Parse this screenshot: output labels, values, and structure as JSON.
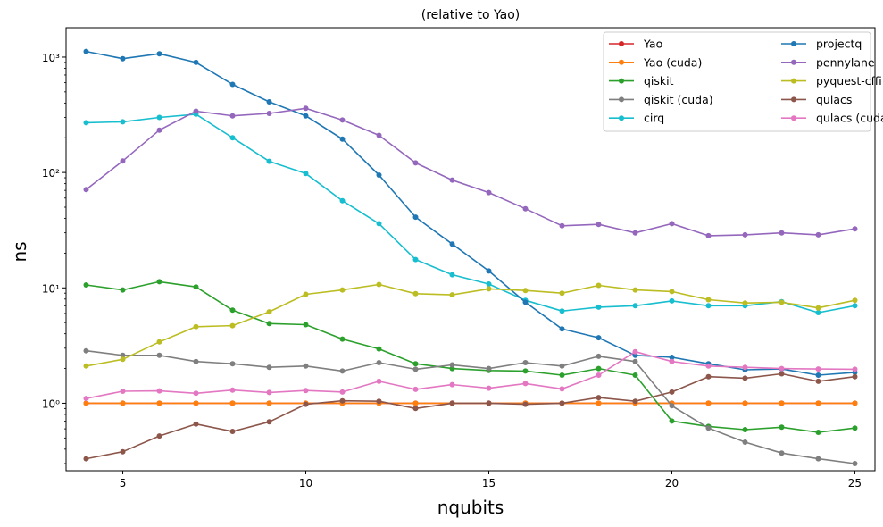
{
  "chart_data": {
    "type": "line",
    "title": "(relative to Yao)",
    "xlabel": "nqubits",
    "ylabel": "ns",
    "yscale": "log",
    "xlim": [
      3.45,
      25.55
    ],
    "ylim": [
      0.26,
      1800
    ],
    "xticks": [
      5,
      10,
      15,
      20,
      25
    ],
    "yticks": [
      {
        "value": 1,
        "label": "10⁰"
      },
      {
        "value": 10,
        "label": "10¹"
      },
      {
        "value": 100,
        "label": "10²"
      },
      {
        "value": 1000,
        "label": "10³"
      }
    ],
    "legend_position": "top-right",
    "x": [
      4,
      5,
      6,
      7,
      8,
      9,
      10,
      11,
      12,
      13,
      14,
      15,
      16,
      17,
      18,
      19,
      20,
      21,
      22,
      23,
      24,
      25
    ],
    "series": [
      {
        "name": "Yao",
        "color": "#d62728",
        "values": [
          1,
          1,
          1,
          1,
          1,
          1,
          1,
          1,
          1,
          1,
          1,
          1,
          1,
          1,
          1,
          1,
          1,
          1,
          1,
          1,
          1,
          1
        ]
      },
      {
        "name": "Yao (cuda)",
        "color": "#ff7f0e",
        "values": [
          1,
          1,
          1,
          1,
          1,
          1,
          1,
          1,
          1,
          1,
          1,
          1,
          1,
          1,
          1,
          1,
          1,
          1,
          1,
          1,
          1,
          1
        ]
      },
      {
        "name": "qiskit",
        "color": "#2ca02c",
        "values": [
          10.6,
          9.6,
          11.3,
          10.2,
          6.4,
          4.9,
          4.8,
          3.6,
          2.96,
          2.2,
          2.0,
          1.92,
          1.9,
          1.75,
          2.0,
          1.75,
          0.7,
          0.63,
          0.59,
          0.62,
          0.56,
          0.61
        ]
      },
      {
        "name": "qiskit (cuda)",
        "color": "#7f7f7f",
        "values": [
          2.85,
          2.6,
          2.6,
          2.3,
          2.2,
          2.05,
          2.1,
          1.9,
          2.25,
          1.97,
          2.15,
          2.0,
          2.25,
          2.1,
          2.55,
          2.3,
          0.95,
          0.61,
          0.46,
          0.37,
          0.33,
          0.3
        ]
      },
      {
        "name": "cirq",
        "color": "#17becf",
        "values": [
          270,
          275,
          300,
          320,
          200,
          125,
          98,
          57,
          36,
          17.6,
          13.0,
          10.8,
          7.8,
          6.3,
          6.8,
          7.0,
          7.7,
          7.0,
          7.0,
          7.6,
          6.1,
          7.0
        ]
      },
      {
        "name": "projectq",
        "color": "#1f77b4",
        "values": [
          1120,
          970,
          1070,
          900,
          580,
          410,
          310,
          195,
          95,
          41,
          24,
          14,
          7.5,
          4.4,
          3.7,
          2.6,
          2.5,
          2.2,
          1.95,
          1.98,
          1.75,
          1.85
        ]
      },
      {
        "name": "pennylane",
        "color": "#9467bd",
        "values": [
          71,
          126,
          233,
          340,
          310,
          325,
          360,
          285,
          210,
          121,
          86,
          67,
          48.5,
          34.5,
          35.5,
          30,
          36,
          28.3,
          28.8,
          30,
          28.8,
          32.5
        ]
      },
      {
        "name": "pyquest-cffi",
        "color": "#bcbd22",
        "values": [
          2.1,
          2.4,
          3.4,
          4.6,
          4.7,
          6.2,
          8.8,
          9.6,
          10.7,
          8.9,
          8.7,
          9.8,
          9.5,
          9.0,
          10.5,
          9.6,
          9.3,
          7.9,
          7.4,
          7.5,
          6.7,
          7.8
        ]
      },
      {
        "name": "qulacs",
        "color": "#8c564b",
        "values": [
          0.33,
          0.38,
          0.52,
          0.66,
          0.57,
          0.69,
          0.98,
          1.05,
          1.04,
          0.9,
          1.0,
          1.0,
          0.98,
          1.0,
          1.12,
          1.04,
          1.25,
          1.7,
          1.65,
          1.8,
          1.55,
          1.7
        ]
      },
      {
        "name": "qulacs (cuda)",
        "color": "#e377c2",
        "values": [
          1.1,
          1.27,
          1.28,
          1.22,
          1.3,
          1.24,
          1.29,
          1.25,
          1.55,
          1.32,
          1.45,
          1.35,
          1.48,
          1.33,
          1.75,
          2.8,
          2.3,
          2.1,
          2.05,
          2.0,
          1.98,
          1.97
        ]
      }
    ]
  }
}
